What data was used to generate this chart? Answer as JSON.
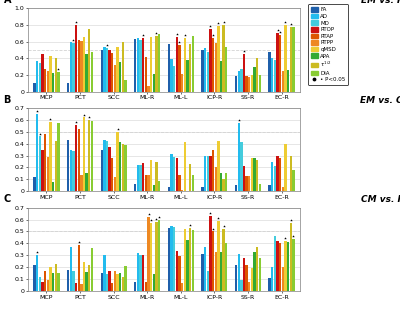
{
  "title_A": "EM vs. HC",
  "title_B": "EM vs. CM",
  "title_C": "CM vs. HC",
  "categories": [
    "MCP",
    "PCT",
    "SCC",
    "ML-R",
    "ML-L",
    "ICP-R",
    "SS-R",
    "EC-R"
  ],
  "biomarkers": [
    "FA",
    "AD",
    "MD",
    "RTOP",
    "RTAP",
    "RTPP",
    "qMSD",
    "APA",
    "T1/2",
    "DiA"
  ],
  "bio_labels": [
    "FA",
    "AD",
    "MD",
    "RTOP",
    "RTAP",
    "RTPP",
    "qMSD",
    "APA",
    "T¹ᐟ²",
    "DiA"
  ],
  "colors": [
    "#1f5faa",
    "#22bbee",
    "#44ccdd",
    "#cc1111",
    "#dd5500",
    "#ee8822",
    "#eecc33",
    "#33aa33",
    "#ccbb22",
    "#88cc33"
  ],
  "panel_A": {
    "MCP": [
      0.1,
      0.37,
      0.34,
      0.45,
      0.27,
      0.25,
      0.43,
      0.22,
      0.4,
      0.23
    ],
    "PCT": [
      0.1,
      0.6,
      0.58,
      0.8,
      0.62,
      0.61,
      0.66,
      0.45,
      0.75,
      0.47
    ],
    "SCC": [
      0.5,
      0.53,
      0.52,
      0.5,
      0.46,
      0.32,
      0.53,
      0.36,
      0.59,
      0.14
    ],
    "ML-R": [
      0.63,
      0.64,
      0.62,
      0.64,
      0.41,
      0.07,
      0.65,
      0.21,
      0.67,
      0.69
    ],
    "ML-L": [
      0.57,
      0.39,
      0.31,
      0.65,
      0.56,
      0.21,
      0.64,
      0.38,
      0.57,
      0.67
    ],
    "ICP-R": [
      0.5,
      0.52,
      0.48,
      0.75,
      0.64,
      0.58,
      0.79,
      0.37,
      0.8,
      0.54
    ],
    "SS-R": [
      0.19,
      0.25,
      0.27,
      0.45,
      0.19,
      0.17,
      0.2,
      0.29,
      0.4,
      0.2
    ],
    "EC-R": [
      0.48,
      0.4,
      0.38,
      0.7,
      0.68,
      0.25,
      0.8,
      0.26,
      0.78,
      0.77
    ]
  },
  "panel_A_sig": {
    "MCP": [
      0,
      0,
      0,
      0,
      0,
      0,
      0,
      0,
      0,
      1
    ],
    "PCT": [
      0,
      0,
      1,
      1,
      0,
      0,
      0,
      0,
      0,
      0
    ],
    "SCC": [
      0,
      0,
      1,
      0,
      0,
      0,
      0,
      0,
      0,
      0
    ],
    "ML-R": [
      0,
      0,
      0,
      1,
      0,
      0,
      0,
      0,
      1,
      0
    ],
    "ML-L": [
      0,
      0,
      0,
      1,
      1,
      0,
      1,
      0,
      0,
      0
    ],
    "ICP-R": [
      0,
      0,
      0,
      1,
      1,
      0,
      1,
      0,
      1,
      0
    ],
    "SS-R": [
      0,
      0,
      0,
      1,
      0,
      0,
      0,
      0,
      0,
      0
    ],
    "EC-R": [
      0,
      0,
      0,
      1,
      1,
      0,
      1,
      0,
      1,
      0
    ]
  },
  "panel_B": {
    "MCP": [
      0.12,
      0.65,
      0.46,
      0.35,
      0.48,
      0.29,
      0.58,
      0.08,
      0.42,
      0.57
    ],
    "PCT": [
      0.43,
      0.35,
      0.34,
      0.56,
      0.52,
      0.14,
      0.62,
      0.15,
      0.6,
      0.59
    ],
    "SCC": [
      0.35,
      0.43,
      0.42,
      0.37,
      0.28,
      0.12,
      0.5,
      0.41,
      0.4,
      0.39
    ],
    "ML-R": [
      0.06,
      0.22,
      0.22,
      0.24,
      0.14,
      0.14,
      0.26,
      0.05,
      0.25,
      0.09
    ],
    "ML-L": [
      0.04,
      0.31,
      0.29,
      0.28,
      0.14,
      0.01,
      0.41,
      0.0,
      0.23,
      0.14
    ],
    "ICP-R": [
      0.04,
      0.3,
      0.3,
      0.3,
      0.35,
      0.2,
      0.42,
      0.15,
      0.1,
      0.15
    ],
    "SS-R": [
      0.05,
      0.57,
      0.41,
      0.21,
      0.13,
      0.13,
      0.28,
      0.28,
      0.26,
      0.06
    ],
    "EC-R": [
      0.05,
      0.25,
      0.21,
      0.3,
      0.28,
      0.04,
      0.4,
      0.0,
      0.3,
      0.18
    ]
  },
  "panel_B_sig": {
    "MCP": [
      0,
      1,
      1,
      0,
      0,
      0,
      1,
      0,
      0,
      0
    ],
    "PCT": [
      0,
      0,
      0,
      1,
      0,
      0,
      1,
      0,
      1,
      0
    ],
    "SCC": [
      0,
      0,
      0,
      0,
      0,
      0,
      1,
      0,
      0,
      0
    ],
    "ML-R": [
      0,
      0,
      0,
      0,
      0,
      0,
      0,
      0,
      0,
      0
    ],
    "ML-L": [
      0,
      0,
      0,
      0,
      0,
      0,
      0,
      0,
      0,
      0
    ],
    "ICP-R": [
      0,
      0,
      0,
      0,
      0,
      0,
      0,
      0,
      0,
      0
    ],
    "SS-R": [
      0,
      1,
      0,
      0,
      0,
      0,
      0,
      0,
      0,
      0
    ],
    "EC-R": [
      0,
      0,
      0,
      0,
      0,
      0,
      0,
      0,
      0,
      0
    ]
  },
  "panel_C": {
    "MCP": [
      0.22,
      0.3,
      0.12,
      0.08,
      0.17,
      0.09,
      0.2,
      0.15,
      0.23,
      0.15
    ],
    "PCT": [
      0.18,
      0.37,
      0.17,
      0.07,
      0.39,
      0.06,
      0.24,
      0.16,
      0.22,
      0.36
    ],
    "SCC": [
      0.15,
      0.3,
      0.14,
      0.17,
      0.07,
      0.17,
      0.14,
      0.15,
      0.12,
      0.21
    ],
    "ML-R": [
      0.08,
      0.32,
      0.3,
      0.3,
      0.08,
      0.62,
      0.57,
      0.14,
      0.58,
      0.6
    ],
    "ML-L": [
      0.53,
      0.55,
      0.54,
      0.34,
      0.29,
      0.07,
      0.52,
      0.43,
      0.53,
      0.51
    ],
    "ICP-R": [
      0.31,
      0.37,
      0.17,
      0.63,
      0.5,
      0.33,
      0.59,
      0.33,
      0.52,
      0.4
    ],
    "SS-R": [
      0.22,
      0.31,
      0.09,
      0.28,
      0.22,
      0.08,
      0.19,
      0.33,
      0.37,
      0.28
    ],
    "EC-R": [
      0.11,
      0.2,
      0.46,
      0.42,
      0.4,
      0.2,
      0.42,
      0.41,
      0.57,
      0.44
    ]
  },
  "panel_C_sig": {
    "MCP": [
      0,
      1,
      0,
      0,
      0,
      0,
      0,
      0,
      0,
      0
    ],
    "PCT": [
      0,
      0,
      0,
      0,
      1,
      0,
      0,
      0,
      0,
      0
    ],
    "SCC": [
      0,
      0,
      0,
      0,
      0,
      0,
      0,
      0,
      0,
      0
    ],
    "ML-R": [
      0,
      0,
      0,
      0,
      0,
      1,
      1,
      0,
      1,
      1
    ],
    "ML-L": [
      0,
      0,
      0,
      0,
      0,
      0,
      0,
      0,
      1,
      0
    ],
    "ICP-R": [
      0,
      0,
      0,
      1,
      1,
      0,
      1,
      0,
      1,
      0
    ],
    "SS-R": [
      0,
      0,
      0,
      0,
      0,
      0,
      0,
      0,
      0,
      0
    ],
    "EC-R": [
      0,
      0,
      0,
      0,
      0,
      0,
      1,
      0,
      1,
      1
    ]
  },
  "ylim_A": [
    0,
    1.0
  ],
  "ylim_BC": [
    0,
    0.7
  ],
  "yticks_A": [
    0,
    0.2,
    0.4,
    0.6,
    0.8,
    1.0
  ],
  "yticks_BC": [
    0,
    0.1,
    0.2,
    0.3,
    0.4,
    0.5,
    0.6,
    0.7
  ]
}
